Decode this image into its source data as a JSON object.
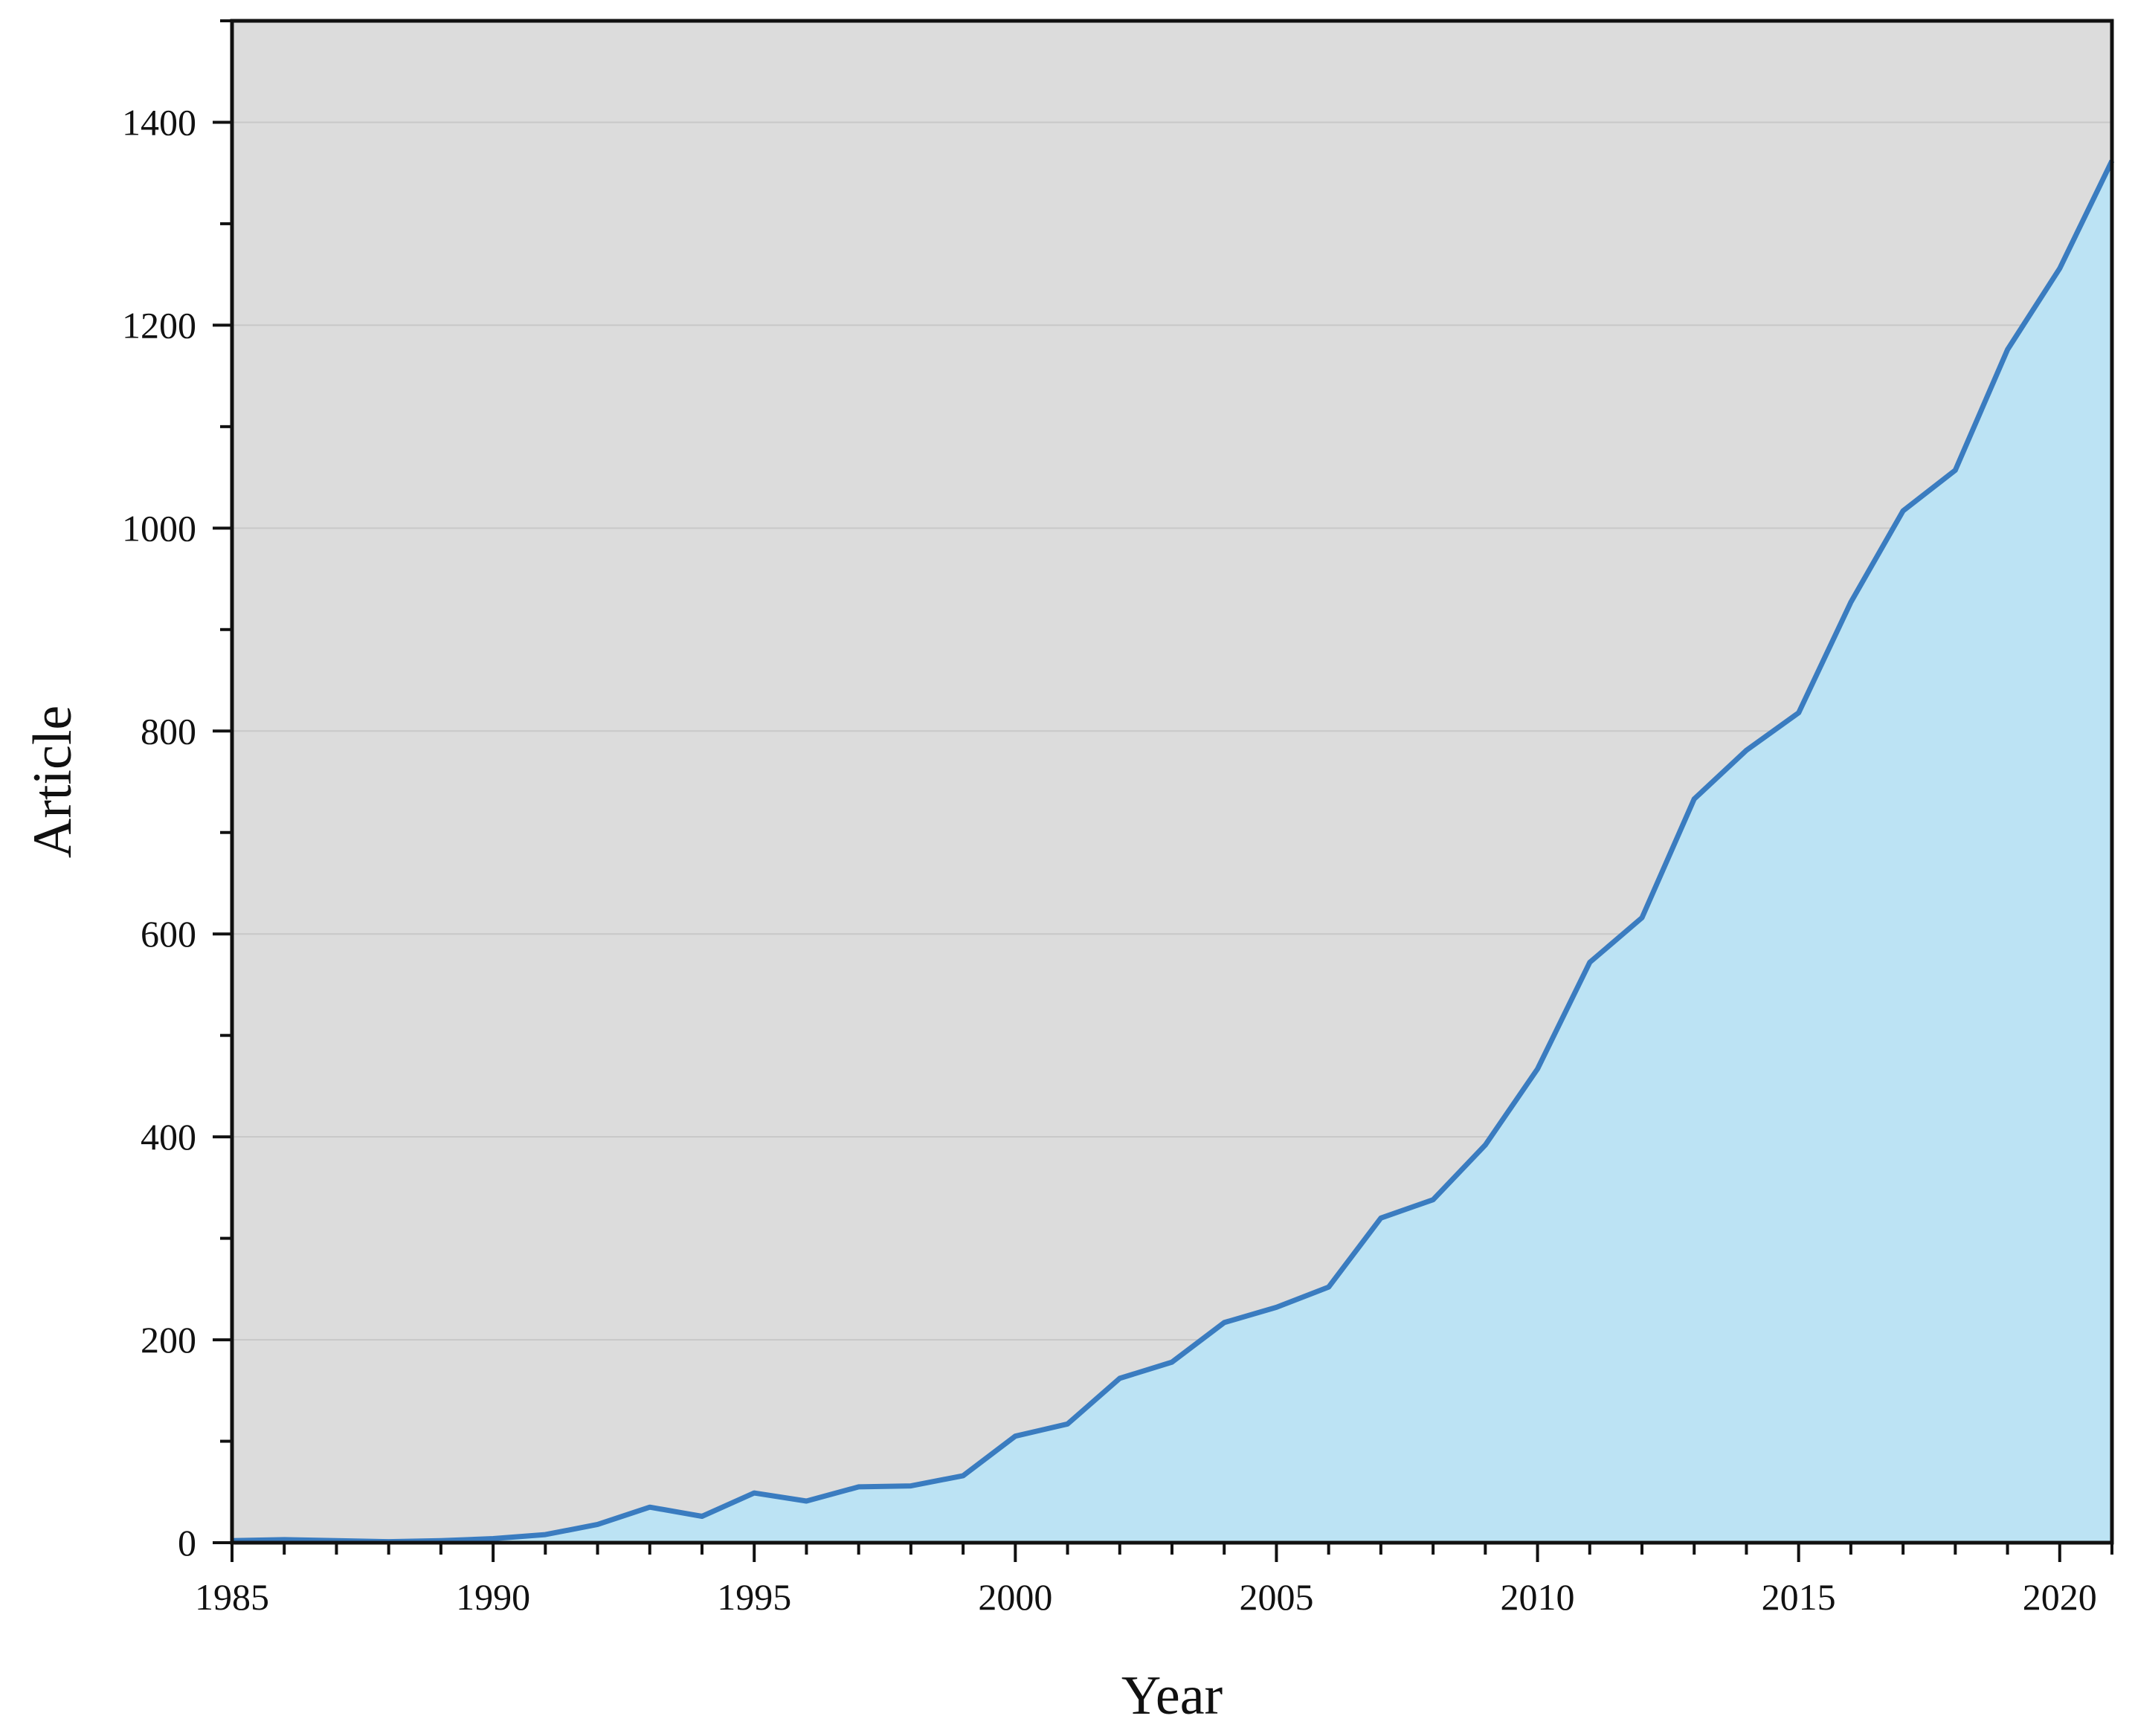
{
  "chart_data": {
    "type": "area",
    "title": "",
    "xlabel": "Year",
    "ylabel": "Article",
    "xlim": [
      1985,
      2021
    ],
    "ylim": [
      0,
      1500
    ],
    "x_ticks": [
      1985,
      1990,
      1995,
      2000,
      2005,
      2010,
      2015,
      2020
    ],
    "y_ticks": [
      0,
      200,
      400,
      600,
      800,
      1000,
      1200,
      1400
    ],
    "y_minor_step": 100,
    "grid": "horizontal",
    "legend": "none",
    "x": [
      1985,
      1986,
      1987,
      1988,
      1989,
      1990,
      1991,
      1992,
      1993,
      1994,
      1995,
      1996,
      1997,
      1998,
      1999,
      2000,
      2001,
      2002,
      2003,
      2004,
      2005,
      2006,
      2007,
      2008,
      2009,
      2010,
      2011,
      2012,
      2013,
      2014,
      2015,
      2016,
      2017,
      2018,
      2019,
      2020,
      2021
    ],
    "values": [
      2,
      3,
      2,
      1,
      2,
      4,
      8,
      18,
      35,
      26,
      49,
      41,
      55,
      56,
      66,
      105,
      117,
      162,
      178,
      217,
      232,
      252,
      320,
      338,
      392,
      467,
      572,
      616,
      733,
      781,
      818,
      927,
      1017,
      1057,
      1176,
      1256,
      1362
    ],
    "colors": {
      "plot_background": "#dcdcdc",
      "area_fill": "#bce3f4",
      "line": "#3a7cc0",
      "grid": "#c8c8c8",
      "axis": "#111111"
    }
  }
}
